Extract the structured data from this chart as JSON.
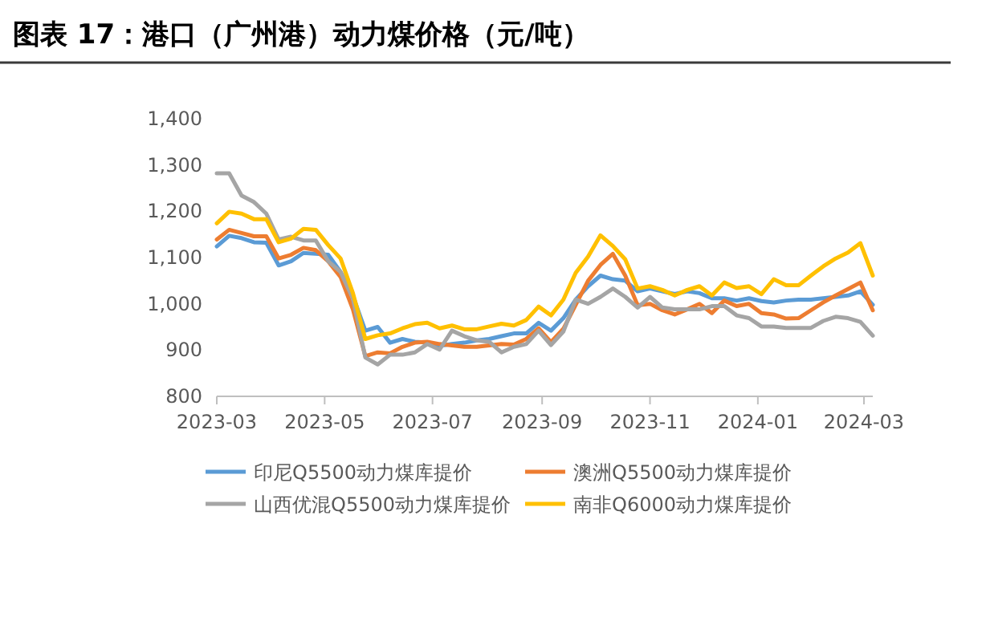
{
  "chart_data": {
    "type": "line",
    "title": "图表 17：港口（广州港）动力煤价格（元/吨）",
    "x": [
      "2023-03-01",
      "2023-03-08",
      "2023-03-15",
      "2023-03-22",
      "2023-03-29",
      "2023-04-05",
      "2023-04-12",
      "2023-04-19",
      "2023-04-26",
      "2023-05-03",
      "2023-05-10",
      "2023-05-17",
      "2023-05-24",
      "2023-05-31",
      "2023-06-07",
      "2023-06-14",
      "2023-06-21",
      "2023-06-28",
      "2023-07-05",
      "2023-07-12",
      "2023-07-19",
      "2023-07-26",
      "2023-08-02",
      "2023-08-09",
      "2023-08-16",
      "2023-08-23",
      "2023-08-30",
      "2023-09-06",
      "2023-09-13",
      "2023-09-20",
      "2023-09-27",
      "2023-10-04",
      "2023-10-11",
      "2023-10-18",
      "2023-10-25",
      "2023-11-01",
      "2023-11-08",
      "2023-11-15",
      "2023-11-22",
      "2023-11-29",
      "2023-12-06",
      "2023-12-13",
      "2023-12-20",
      "2023-12-27",
      "2024-01-03",
      "2024-01-10",
      "2024-01-17",
      "2024-01-24",
      "2024-01-31",
      "2024-02-07",
      "2024-02-14",
      "2024-02-21",
      "2024-02-28",
      "2024-03-06"
    ],
    "series": [
      {
        "name": "印尼Q5500动力煤库提价",
        "color": "#5b9bd5",
        "values": [
          1124,
          1147,
          1142,
          1133,
          1132,
          1083,
          1092,
          1110,
          1108,
          1106,
          1069,
          1017,
          942,
          950,
          916,
          924,
          918,
          916,
          909,
          913,
          916,
          921,
          924,
          930,
          936,
          936,
          959,
          942,
          969,
          1009,
          1038,
          1061,
          1053,
          1050,
          1027,
          1033,
          1027,
          1021,
          1027,
          1023,
          1012,
          1012,
          1007,
          1012,
          1006,
          1003,
          1007,
          1009,
          1009,
          1012,
          1015,
          1018,
          1027,
          998
        ]
      },
      {
        "name": "澳洲Q5500动力煤库提价",
        "color": "#ed7d31",
        "values": [
          1139,
          1160,
          1153,
          1146,
          1146,
          1098,
          1106,
          1121,
          1116,
          1092,
          1058,
          988,
          887,
          895,
          893,
          907,
          916,
          918,
          913,
          910,
          907,
          907,
          910,
          913,
          912,
          924,
          947,
          917,
          946,
          998,
          1050,
          1084,
          1108,
          1061,
          997,
          1000,
          986,
          977,
          988,
          1000,
          980,
          1007,
          995,
          1000,
          980,
          977,
          968,
          969,
          986,
          1003,
          1018,
          1032,
          1046,
          986
        ]
      },
      {
        "name": "山西优混Q5500动力煤库提价",
        "color": "#a5a5a5",
        "values": [
          1282,
          1282,
          1234,
          1220,
          1195,
          1139,
          1145,
          1137,
          1137,
          1092,
          1069,
          1011,
          884,
          869,
          890,
          890,
          895,
          913,
          901,
          942,
          930,
          921,
          918,
          895,
          907,
          913,
          942,
          911,
          940,
          1009,
          1000,
          1015,
          1033,
          1015,
          992,
          1015,
          992,
          988,
          988,
          988,
          995,
          995,
          975,
          969,
          951,
          951,
          948,
          948,
          948,
          963,
          972,
          969,
          961,
          931
        ]
      },
      {
        "name": "南非Q6000动力煤库提价",
        "color": "#ffc000",
        "values": [
          1174,
          1199,
          1195,
          1183,
          1183,
          1133,
          1141,
          1162,
          1160,
          1127,
          1098,
          1023,
          924,
          932,
          936,
          947,
          956,
          959,
          947,
          953,
          945,
          945,
          951,
          957,
          953,
          965,
          994,
          975,
          1009,
          1067,
          1102,
          1148,
          1125,
          1096,
          1033,
          1038,
          1030,
          1018,
          1030,
          1038,
          1018,
          1046,
          1034,
          1038,
          1021,
          1053,
          1040,
          1040,
          1061,
          1081,
          1098,
          1111,
          1131,
          1061
        ]
      }
    ],
    "xlim": [
      "2023-03-01",
      "2024-03-06"
    ],
    "xticks": [
      "2023-03",
      "2023-05",
      "2023-07",
      "2023-09",
      "2023-11",
      "2024-01",
      "2024-03"
    ],
    "ylim": [
      800,
      1400
    ],
    "yticks": [
      800,
      900,
      {
        "value": 1000,
        "label": "1,000"
      },
      {
        "value": 1100,
        "label": "1,100"
      },
      {
        "value": 1200,
        "label": "1,200"
      },
      {
        "value": 1300,
        "label": "1,300"
      },
      {
        "value": 1400,
        "label": "1,400"
      }
    ],
    "grid": false,
    "legend": "bottom",
    "marker": "none",
    "line_style": "solid"
  }
}
